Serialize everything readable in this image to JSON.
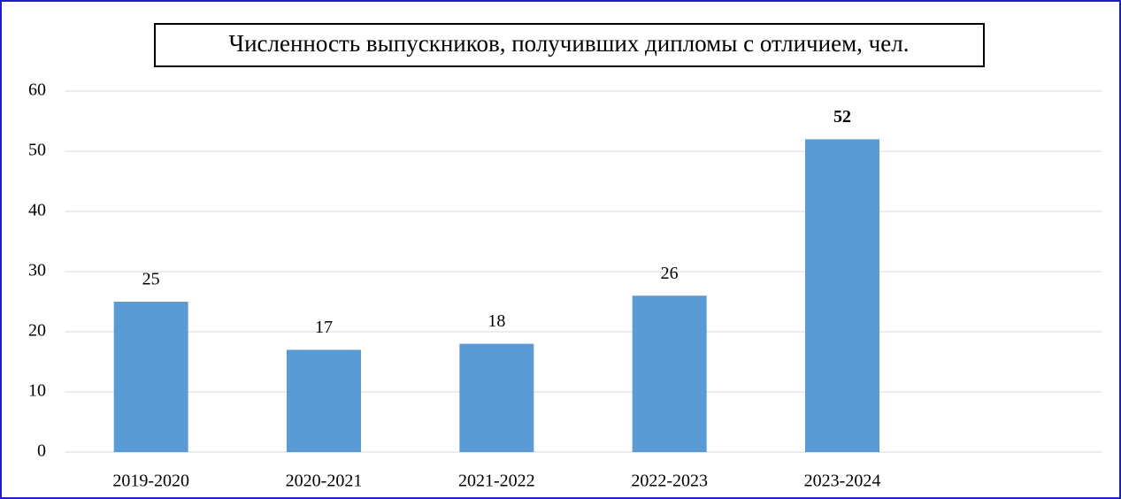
{
  "chart_data": {
    "type": "bar",
    "title": "Численность выпускников, получивших дипломы с отличием, чел.",
    "categories": [
      "2019-2020",
      "2020-2021",
      "2021-2022",
      "2022-2023",
      "2023-2024",
      null
    ],
    "values": [
      25,
      17,
      18,
      26,
      52,
      null
    ],
    "color": "#5b9bd5",
    "ylim": [
      0,
      60
    ],
    "yticks": [
      0,
      10,
      20,
      30,
      40,
      50,
      60
    ],
    "grid": true
  }
}
